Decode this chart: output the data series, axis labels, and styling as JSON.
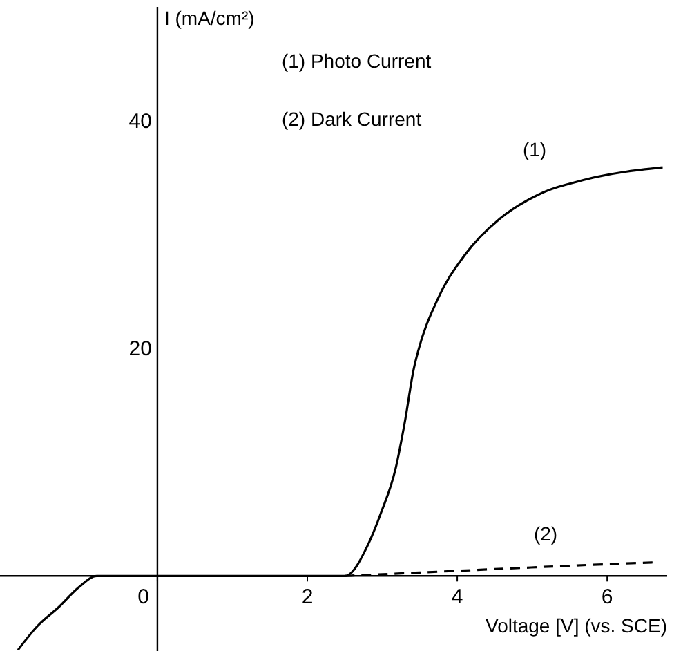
{
  "chart_data": {
    "type": "line",
    "xlabel": "Voltage [V] (vs. SCE)",
    "ylabel": "I (mA/cm²)",
    "xlim": [
      -2.1,
      6.8
    ],
    "ylim": [
      -6.6,
      50
    ],
    "xticks": [
      0,
      2,
      4,
      6
    ],
    "yticks": [
      20,
      40
    ],
    "grid": false,
    "marker": "none",
    "series": [
      {
        "color": "#000000",
        "line_style": "solid",
        "x": [
          -1.86,
          -1.6,
          -1.31,
          -1.05,
          -0.81,
          0,
          1,
          2,
          2.5,
          2.82,
          2.98,
          3.18,
          3.3,
          3.42,
          3.48,
          3.73,
          4.1,
          4.57,
          5.08,
          5.69,
          6.74
        ],
        "values": [
          -6.5,
          -4.4,
          -2.7,
          -1.0,
          0,
          0,
          0,
          0,
          0,
          2.9,
          5.5,
          9.5,
          13.5,
          18.2,
          19.8,
          24.2,
          28.2,
          31.4,
          33.5,
          34.8,
          35.9
        ]
      },
      {
        "color": "#000000",
        "line_style": "dashed",
        "x": [
          2.5,
          3.5,
          4.5,
          5.5,
          6.65
        ],
        "values": [
          0,
          0.3,
          0.6,
          0.9,
          1.2
        ]
      }
    ],
    "annotations": [
      "(1) Photo Current",
      "(2) Dark Current",
      "(1)",
      "(2)"
    ]
  }
}
